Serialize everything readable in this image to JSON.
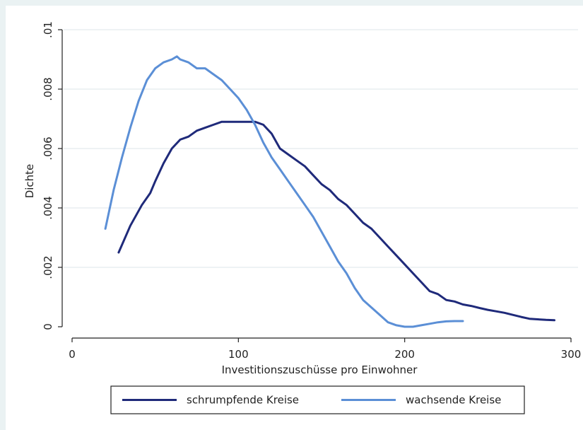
{
  "chart_data": {
    "type": "line",
    "title": "",
    "xlabel": "Investitionszuschüsse pro Einwohner",
    "ylabel": "Dichte",
    "xlim": [
      0,
      300
    ],
    "ylim": [
      0,
      0.01
    ],
    "x_ticks": [
      {
        "value": 0,
        "label": "0"
      },
      {
        "value": 100,
        "label": "100"
      },
      {
        "value": 200,
        "label": "200"
      },
      {
        "value": 300,
        "label": "300"
      }
    ],
    "y_ticks": [
      {
        "value": 0,
        "label": "0"
      },
      {
        "value": 0.002,
        "label": ".002"
      },
      {
        "value": 0.004,
        "label": ".004"
      },
      {
        "value": 0.006,
        "label": ".006"
      },
      {
        "value": 0.008,
        "label": ".008"
      },
      {
        "value": 0.01,
        "label": ".01"
      }
    ],
    "grid": "horizontal",
    "legend_position": "bottom",
    "series": [
      {
        "name": "schrumpfende Kreise",
        "color": "#1f2a7a",
        "points": [
          [
            28,
            0.0025
          ],
          [
            35,
            0.0034
          ],
          [
            42,
            0.0041
          ],
          [
            47,
            0.0045
          ],
          [
            50,
            0.0049
          ],
          [
            55,
            0.0055
          ],
          [
            60,
            0.006
          ],
          [
            65,
            0.0063
          ],
          [
            70,
            0.0064
          ],
          [
            75,
            0.0066
          ],
          [
            80,
            0.0067
          ],
          [
            85,
            0.0068
          ],
          [
            90,
            0.0069
          ],
          [
            95,
            0.0069
          ],
          [
            100,
            0.0069
          ],
          [
            105,
            0.0069
          ],
          [
            110,
            0.0069
          ],
          [
            115,
            0.0068
          ],
          [
            120,
            0.0065
          ],
          [
            125,
            0.006
          ],
          [
            130,
            0.0058
          ],
          [
            135,
            0.0056
          ],
          [
            140,
            0.0054
          ],
          [
            145,
            0.0051
          ],
          [
            150,
            0.0048
          ],
          [
            155,
            0.0046
          ],
          [
            160,
            0.0043
          ],
          [
            165,
            0.0041
          ],
          [
            170,
            0.0038
          ],
          [
            175,
            0.0035
          ],
          [
            180,
            0.0033
          ],
          [
            185,
            0.003
          ],
          [
            190,
            0.0027
          ],
          [
            195,
            0.0024
          ],
          [
            200,
            0.0021
          ],
          [
            205,
            0.0018
          ],
          [
            210,
            0.0015
          ],
          [
            215,
            0.0012
          ],
          [
            220,
            0.0011
          ],
          [
            225,
            0.0009
          ],
          [
            230,
            0.00085
          ],
          [
            235,
            0.00075
          ],
          [
            240,
            0.0007
          ],
          [
            245,
            0.00063
          ],
          [
            250,
            0.00057
          ],
          [
            255,
            0.00052
          ],
          [
            260,
            0.00047
          ],
          [
            265,
            0.0004
          ],
          [
            270,
            0.00033
          ],
          [
            275,
            0.00027
          ],
          [
            280,
            0.00025
          ],
          [
            285,
            0.00023
          ],
          [
            290,
            0.00022
          ]
        ]
      },
      {
        "name": "wachsende Kreise",
        "color": "#5b8fd6",
        "points": [
          [
            20,
            0.0033
          ],
          [
            25,
            0.0046
          ],
          [
            30,
            0.0057
          ],
          [
            35,
            0.0067
          ],
          [
            40,
            0.0076
          ],
          [
            45,
            0.0083
          ],
          [
            50,
            0.0087
          ],
          [
            55,
            0.0089
          ],
          [
            60,
            0.009
          ],
          [
            63,
            0.0091
          ],
          [
            65,
            0.009
          ],
          [
            70,
            0.0089
          ],
          [
            75,
            0.0087
          ],
          [
            80,
            0.0087
          ],
          [
            85,
            0.0085
          ],
          [
            90,
            0.0083
          ],
          [
            95,
            0.008
          ],
          [
            100,
            0.0077
          ],
          [
            105,
            0.0073
          ],
          [
            110,
            0.0068
          ],
          [
            115,
            0.0062
          ],
          [
            120,
            0.0057
          ],
          [
            125,
            0.0053
          ],
          [
            130,
            0.0049
          ],
          [
            135,
            0.0045
          ],
          [
            140,
            0.0041
          ],
          [
            145,
            0.0037
          ],
          [
            150,
            0.0032
          ],
          [
            155,
            0.0027
          ],
          [
            160,
            0.0022
          ],
          [
            165,
            0.0018
          ],
          [
            170,
            0.0013
          ],
          [
            175,
            0.0009
          ],
          [
            180,
            0.00065
          ],
          [
            185,
            0.0004
          ],
          [
            190,
            0.00015
          ],
          [
            195,
            5e-05
          ],
          [
            200,
            0.0
          ],
          [
            205,
            0.0
          ],
          [
            210,
            5e-05
          ],
          [
            215,
            0.0001
          ],
          [
            220,
            0.00015
          ],
          [
            225,
            0.00018
          ],
          [
            230,
            0.00019
          ],
          [
            235,
            0.00019
          ]
        ]
      }
    ]
  }
}
